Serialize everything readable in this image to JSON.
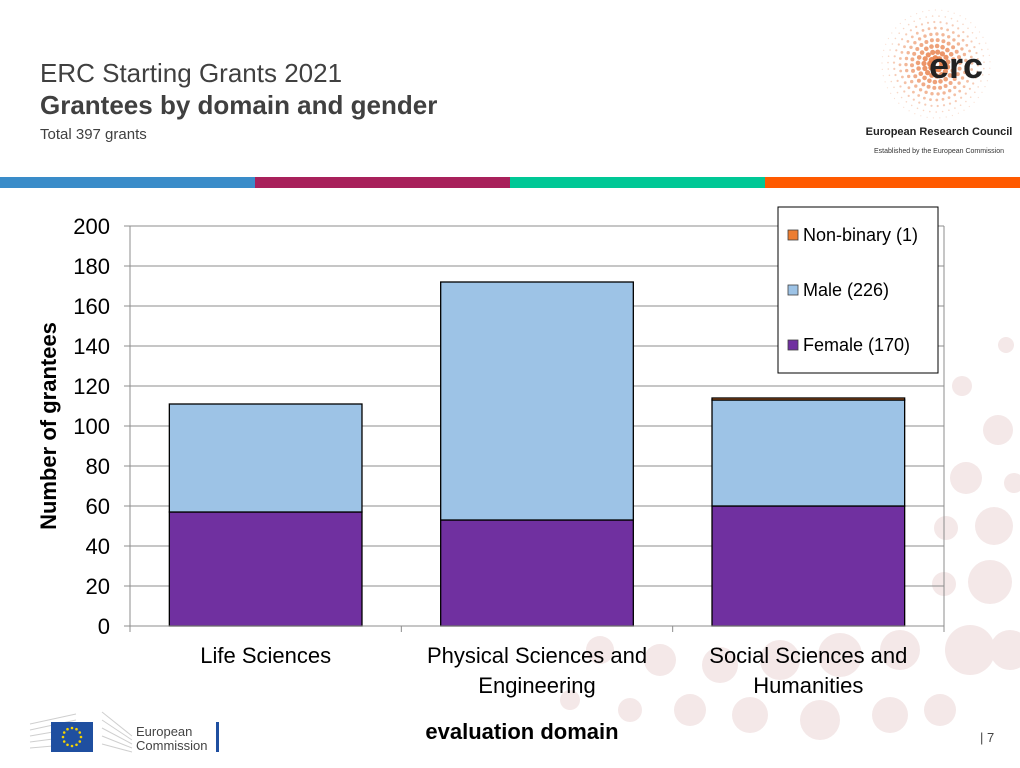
{
  "header": {
    "title": "ERC Starting Grants 2021",
    "subtitle": "Grantees by domain and gender",
    "total": "Total 397 grants"
  },
  "logo": {
    "mark": "erc",
    "name": "European Research Council",
    "tagline": "Established by the European Commission"
  },
  "colorbar": [
    "#3a8cc9",
    "#a8215b",
    "#00c896",
    "#ff5a00"
  ],
  "footer": {
    "org_line1": "European",
    "org_line2": "Commission",
    "page_number": "7"
  },
  "chart_data": {
    "type": "bar",
    "stacked": true,
    "title": "",
    "xlabel": "evaluation domain",
    "ylabel": "Number of grantees",
    "ylim": [
      0,
      200
    ],
    "yticks": [
      0,
      20,
      40,
      60,
      80,
      100,
      120,
      140,
      160,
      180,
      200
    ],
    "grid": true,
    "legend_position": "top-right",
    "categories": [
      [
        "Life Sciences"
      ],
      [
        "Physical Sciences and",
        "Engineering"
      ],
      [
        "Social Sciences and",
        "Humanities"
      ]
    ],
    "series": [
      {
        "name": "Female (170)",
        "color": "#7030a0",
        "values": [
          57,
          53,
          60
        ]
      },
      {
        "name": "Male (226)",
        "color": "#9dc3e6",
        "values": [
          54,
          119,
          53
        ]
      },
      {
        "name": "Non-binary (1)",
        "color": "#ed7d31",
        "values": [
          0,
          0,
          1
        ]
      }
    ],
    "legend_order": [
      2,
      1,
      0
    ]
  }
}
